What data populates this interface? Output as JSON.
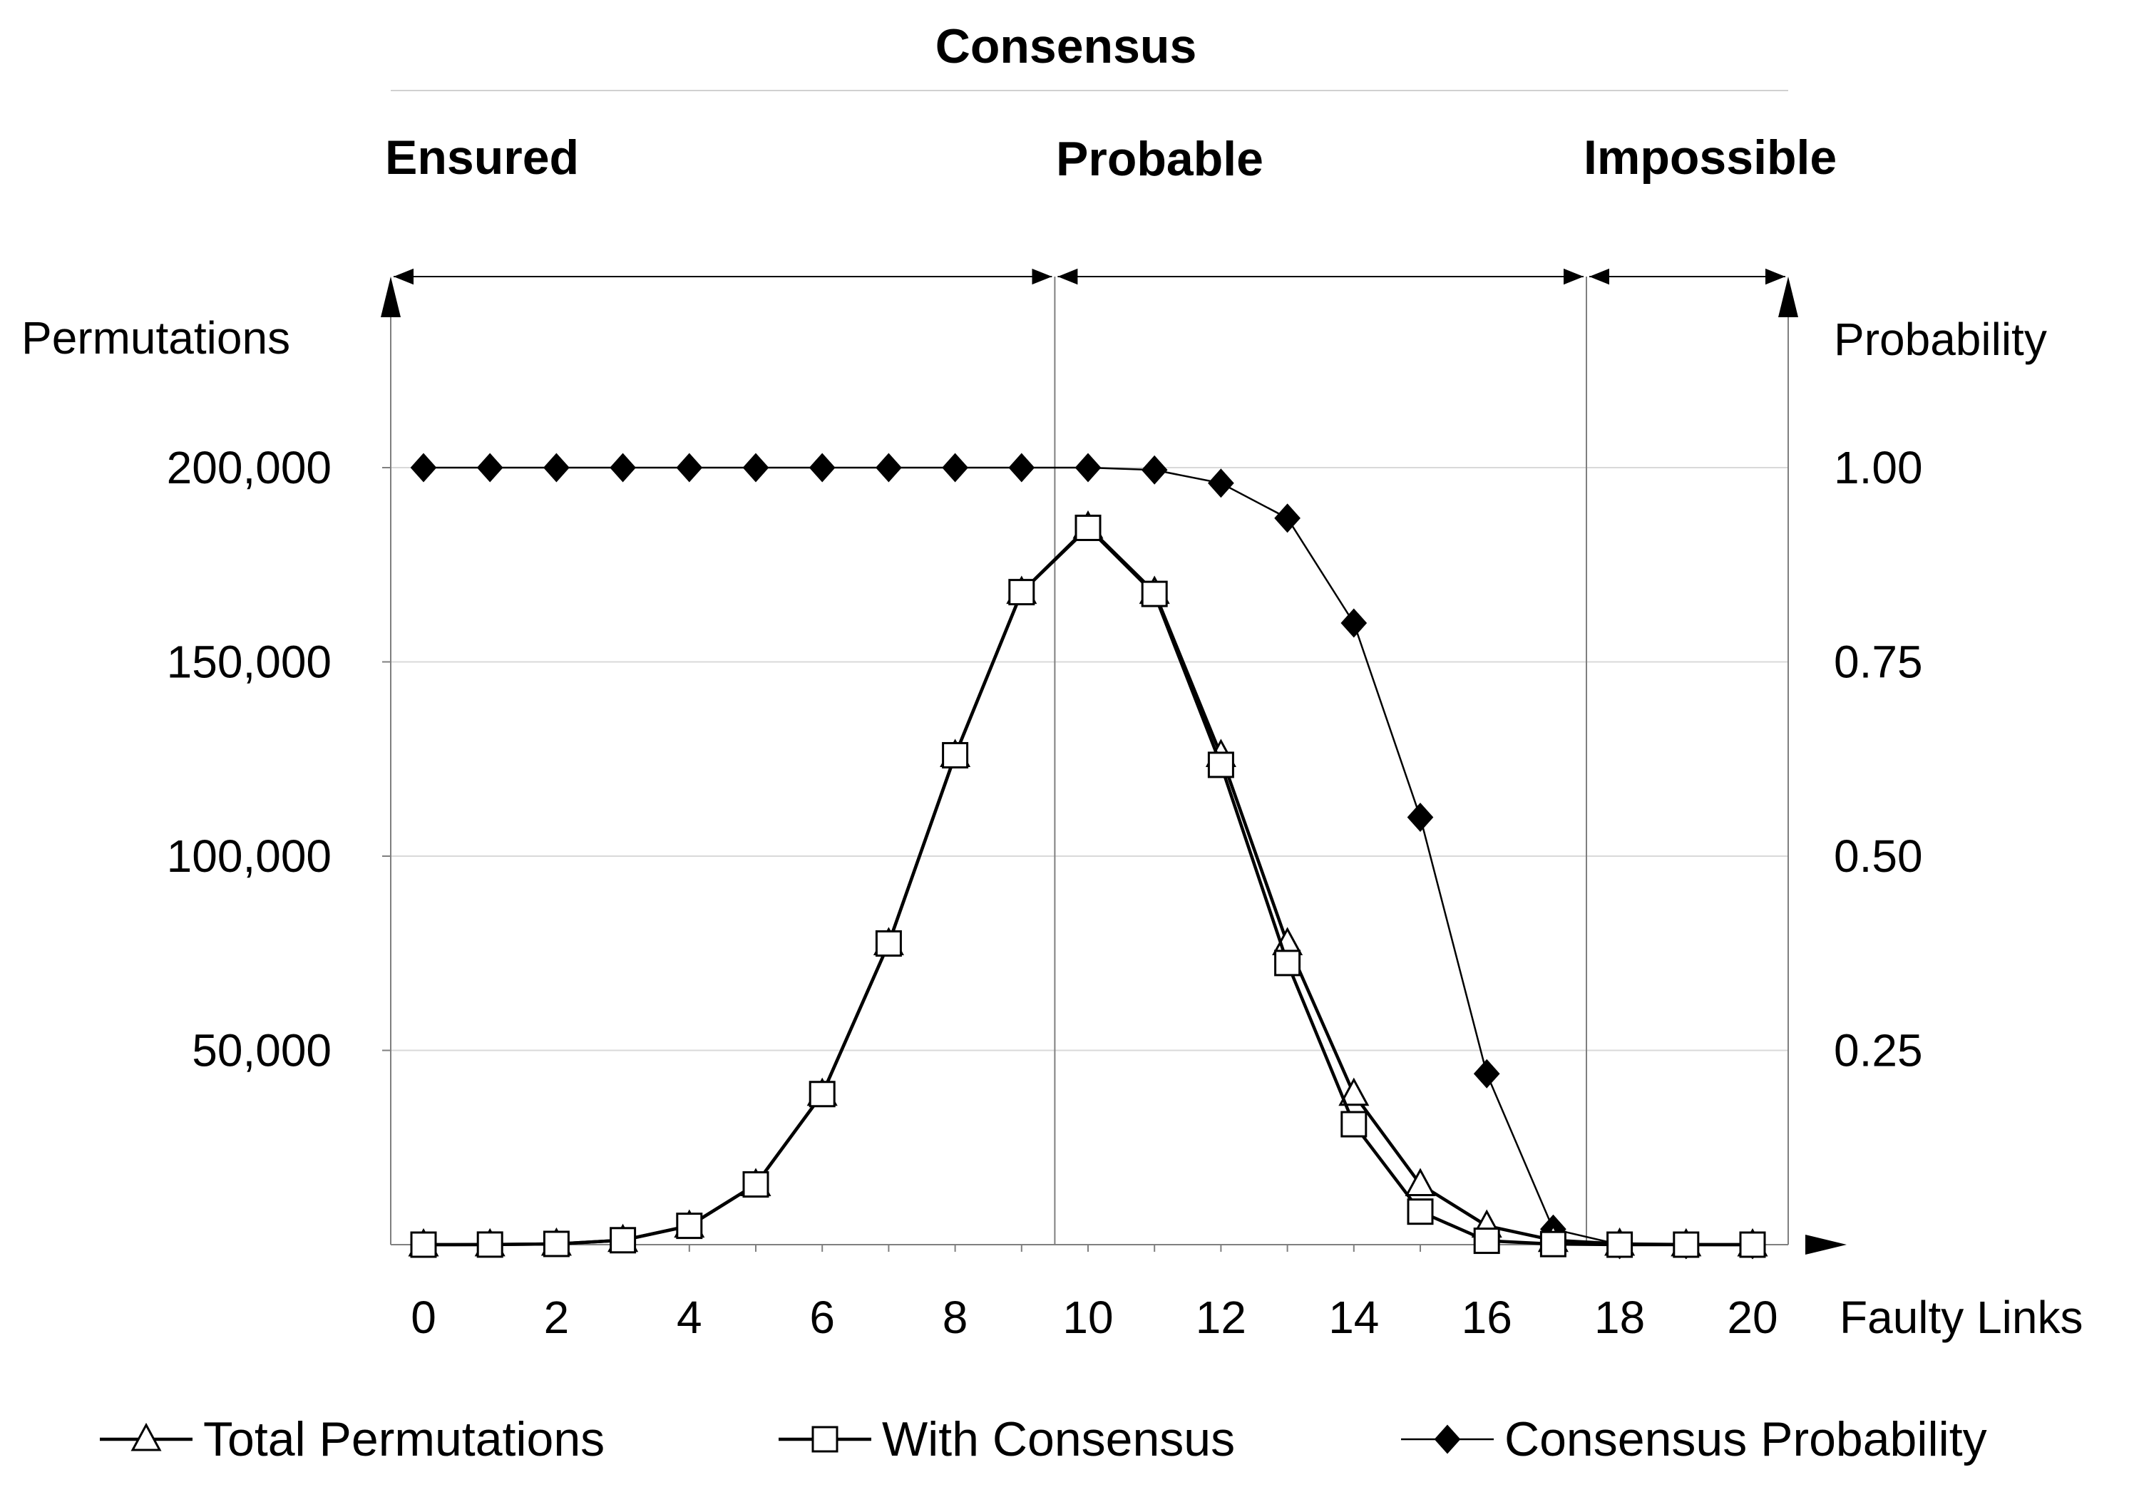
{
  "chart_data": {
    "type": "line",
    "title": "Consensus",
    "regions": [
      {
        "label": "Ensured",
        "x_start": 0,
        "x_end": 9.5
      },
      {
        "label": "Probable",
        "x_start": 9.5,
        "x_end": 17.5
      },
      {
        "label": "Impossible",
        "x_start": 17.5,
        "x_end": 20.5
      }
    ],
    "xlabel": "Faulty Links",
    "ylabel_left": "Permutations",
    "ylabel_right": "Probability",
    "x_ticks": [
      "0",
      "2",
      "4",
      "6",
      "8",
      "10",
      "12",
      "14",
      "16",
      "18",
      "20"
    ],
    "y_left_ticks": [
      "50,000",
      "100,000",
      "150,000",
      "200,000"
    ],
    "y_right_ticks": [
      "0.25",
      "0.50",
      "0.75",
      "1.00"
    ],
    "xlim": [
      -0.5,
      20.5
    ],
    "ylim_left": [
      0,
      200000
    ],
    "ylim_right": [
      0,
      1
    ],
    "x": [
      0,
      1,
      2,
      3,
      4,
      5,
      6,
      7,
      8,
      9,
      10,
      11,
      12,
      13,
      14,
      15,
      16,
      17,
      18,
      19,
      20
    ],
    "series": [
      {
        "name": "Total Permutations",
        "axis": "left",
        "marker": "triangle",
        "values": [
          1,
          20,
          190,
          1140,
          4845,
          15504,
          38760,
          77520,
          125970,
          167960,
          184756,
          167960,
          125970,
          77520,
          38760,
          15504,
          4845,
          1140,
          190,
          20,
          1
        ]
      },
      {
        "name": "With Consensus",
        "axis": "left",
        "marker": "square",
        "values": [
          1,
          20,
          190,
          1140,
          4845,
          15504,
          38760,
          77520,
          125970,
          167960,
          184500,
          167500,
          123500,
          72500,
          31000,
          8500,
          1000,
          150,
          0,
          0,
          0
        ]
      },
      {
        "name": "Consensus Probability",
        "axis": "right",
        "marker": "diamond",
        "values": [
          1.0,
          1.0,
          1.0,
          1.0,
          1.0,
          1.0,
          1.0,
          1.0,
          1.0,
          1.0,
          1.0,
          0.997,
          0.98,
          0.935,
          0.8,
          0.55,
          0.22,
          0.02,
          0.0,
          0.0,
          0.0
        ]
      }
    ],
    "grid": true,
    "legend_position": "bottom"
  }
}
